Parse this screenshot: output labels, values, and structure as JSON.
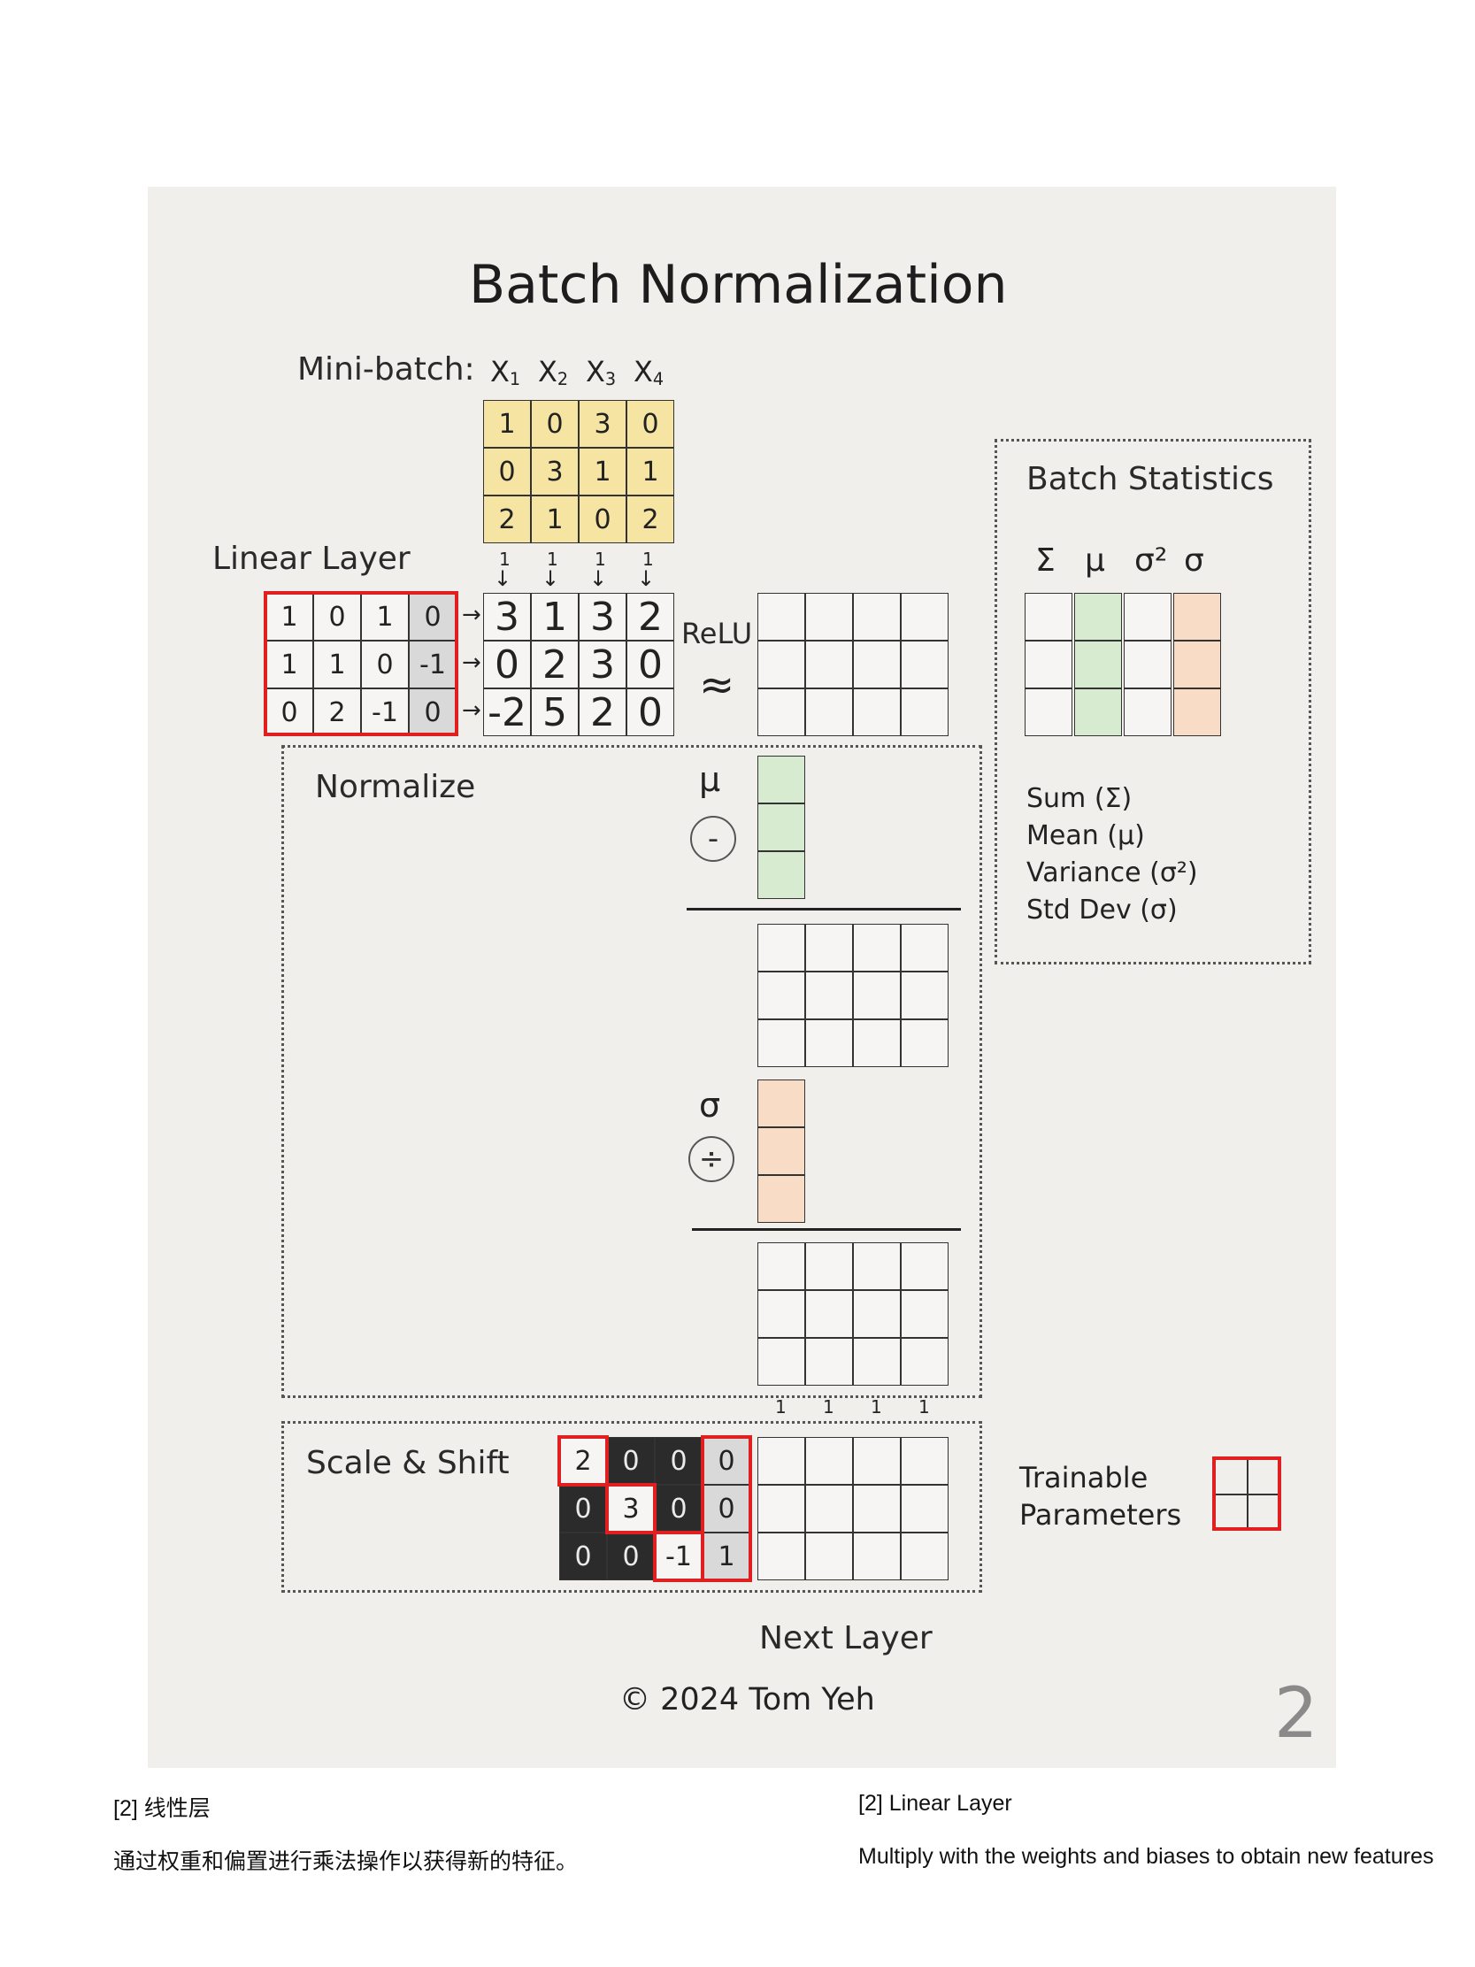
{
  "diagram": {
    "title": "Batch Normalization",
    "minibatch": {
      "label": "Mini-batch:",
      "columns": [
        "X1",
        "X2",
        "X3",
        "X4"
      ],
      "matrix": [
        [
          "1",
          "0",
          "3",
          "0"
        ],
        [
          "0",
          "3",
          "1",
          "1"
        ],
        [
          "2",
          "1",
          "0",
          "2"
        ]
      ],
      "bias_ones": [
        "1",
        "1",
        "1",
        "1"
      ]
    },
    "linear_layer": {
      "label": "Linear Layer",
      "weights": [
        [
          "1",
          "0",
          "1",
          "0"
        ],
        [
          "1",
          "1",
          "0",
          "-1"
        ],
        [
          "0",
          "2",
          "-1",
          "0"
        ]
      ],
      "output": [
        [
          "3",
          "1",
          "3",
          "2"
        ],
        [
          "0",
          "2",
          "3",
          "0"
        ],
        [
          "-2",
          "5",
          "2",
          "0"
        ]
      ]
    },
    "relu": {
      "label": "ReLU",
      "approx": "≈"
    },
    "batch_statistics": {
      "title": "Batch Statistics",
      "symbols": [
        "Σ",
        "μ",
        "σ²",
        "σ"
      ],
      "legend": [
        "Sum (Σ)",
        "Mean (μ)",
        "Variance (σ²)",
        "Std Dev (σ)"
      ]
    },
    "normalize": {
      "label": "Normalize",
      "mu_symbol": "μ",
      "minus_op": "-",
      "sigma_symbol": "σ",
      "divide_op": "÷"
    },
    "scale_shift": {
      "label": "Scale & Shift",
      "matrix": [
        [
          "2",
          "0",
          "0",
          "0"
        ],
        [
          "0",
          "3",
          "0",
          "0"
        ],
        [
          "0",
          "0",
          "-1",
          "1"
        ]
      ],
      "ones": [
        "1",
        "1",
        "1",
        "1"
      ]
    },
    "trainable_parameters": {
      "line1": "Trainable",
      "line2": "Parameters"
    },
    "next_layer": "Next Layer",
    "copyright": "©  2024 Tom Yeh",
    "page_number": "2"
  },
  "captions": {
    "zh_heading": "[2] 线性层",
    "zh_body": "通过权重和偏置进行乘法操作以获得新的特征。",
    "en_heading": "[2] Linear Layer",
    "en_body": "Multiply with the weights and biases to obtain new features"
  }
}
